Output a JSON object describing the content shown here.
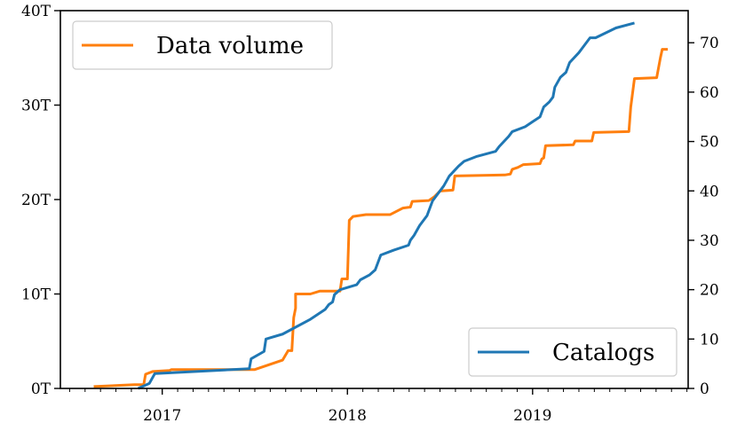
{
  "chart_data": {
    "type": "line",
    "x_axis": {
      "type": "date",
      "range": [
        2016.45,
        2019.84
      ],
      "ticks": [
        2017,
        2018,
        2019
      ],
      "tick_labels": [
        "2017",
        "2018",
        "2019"
      ]
    },
    "y_left": {
      "range": [
        0,
        40
      ],
      "ticks": [
        0,
        10,
        20,
        30,
        40
      ],
      "tick_labels": [
        "0T",
        "10T",
        "20T",
        "30T",
        "40T"
      ]
    },
    "y_right": {
      "range": [
        0,
        76.5
      ],
      "ticks": [
        0,
        10,
        20,
        30,
        40,
        50,
        60,
        70
      ],
      "tick_labels": [
        "0",
        "10",
        "20",
        "30",
        "40",
        "50",
        "60",
        "70"
      ]
    },
    "grid": false,
    "series": [
      {
        "name": "Data volume",
        "axis": "left",
        "color": "#ff7f0e",
        "legend_position": "top-left",
        "points": [
          [
            2016.63,
            0.2
          ],
          [
            2016.85,
            0.4
          ],
          [
            2016.9,
            0.4
          ],
          [
            2016.91,
            1.5
          ],
          [
            2016.95,
            1.8
          ],
          [
            2017.04,
            1.9
          ],
          [
            2017.05,
            2.0
          ],
          [
            2017.5,
            2.0
          ],
          [
            2017.65,
            3.0
          ],
          [
            2017.68,
            4.0
          ],
          [
            2017.7,
            4.0
          ],
          [
            2017.71,
            7.5
          ],
          [
            2017.72,
            8.5
          ],
          [
            2017.72,
            10.0
          ],
          [
            2017.8,
            10.0
          ],
          [
            2017.85,
            10.3
          ],
          [
            2017.96,
            10.3
          ],
          [
            2017.97,
            11.6
          ],
          [
            2018.0,
            11.6
          ],
          [
            2018.01,
            17.8
          ],
          [
            2018.03,
            18.2
          ],
          [
            2018.1,
            18.4
          ],
          [
            2018.23,
            18.4
          ],
          [
            2018.3,
            19.1
          ],
          [
            2018.34,
            19.2
          ],
          [
            2018.35,
            19.8
          ],
          [
            2018.44,
            19.9
          ],
          [
            2018.47,
            20.3
          ],
          [
            2018.5,
            20.9
          ],
          [
            2018.57,
            21.0
          ],
          [
            2018.58,
            22.5
          ],
          [
            2018.85,
            22.6
          ],
          [
            2018.88,
            22.7
          ],
          [
            2018.89,
            23.2
          ],
          [
            2018.92,
            23.4
          ],
          [
            2018.95,
            23.7
          ],
          [
            2019.04,
            23.8
          ],
          [
            2019.05,
            24.3
          ],
          [
            2019.06,
            24.4
          ],
          [
            2019.07,
            25.7
          ],
          [
            2019.22,
            25.8
          ],
          [
            2019.23,
            26.2
          ],
          [
            2019.32,
            26.2
          ],
          [
            2019.33,
            27.1
          ],
          [
            2019.52,
            27.2
          ],
          [
            2019.53,
            29.8
          ],
          [
            2019.55,
            32.8
          ],
          [
            2019.67,
            32.9
          ],
          [
            2019.69,
            35.0
          ],
          [
            2019.7,
            35.9
          ],
          [
            2019.73,
            35.9
          ]
        ]
      },
      {
        "name": "Catalogs",
        "axis": "right",
        "color": "#1f77b4",
        "legend_position": "bottom-right",
        "points": [
          [
            2016.87,
            0
          ],
          [
            2016.93,
            1
          ],
          [
            2016.96,
            3
          ],
          [
            2017.47,
            4
          ],
          [
            2017.48,
            6
          ],
          [
            2017.55,
            7.5
          ],
          [
            2017.56,
            10
          ],
          [
            2017.65,
            11
          ],
          [
            2017.8,
            14
          ],
          [
            2017.88,
            16
          ],
          [
            2017.9,
            17
          ],
          [
            2017.92,
            17.5
          ],
          [
            2017.93,
            19
          ],
          [
            2017.96,
            20
          ],
          [
            2018.05,
            21
          ],
          [
            2018.07,
            22
          ],
          [
            2018.12,
            23
          ],
          [
            2018.15,
            24
          ],
          [
            2018.18,
            27
          ],
          [
            2018.25,
            28
          ],
          [
            2018.33,
            29
          ],
          [
            2018.34,
            30
          ],
          [
            2018.36,
            31
          ],
          [
            2018.39,
            33
          ],
          [
            2018.43,
            35
          ],
          [
            2018.44,
            36
          ],
          [
            2018.46,
            38
          ],
          [
            2018.52,
            41
          ],
          [
            2018.55,
            43
          ],
          [
            2018.6,
            45
          ],
          [
            2018.63,
            46
          ],
          [
            2018.7,
            47
          ],
          [
            2018.8,
            48
          ],
          [
            2018.82,
            49
          ],
          [
            2018.87,
            51
          ],
          [
            2018.89,
            52
          ],
          [
            2018.96,
            53
          ],
          [
            2019.0,
            54
          ],
          [
            2019.04,
            55
          ],
          [
            2019.06,
            57
          ],
          [
            2019.09,
            58
          ],
          [
            2019.11,
            59
          ],
          [
            2019.12,
            61
          ],
          [
            2019.15,
            63
          ],
          [
            2019.18,
            64
          ],
          [
            2019.2,
            66
          ],
          [
            2019.25,
            68
          ],
          [
            2019.27,
            69
          ],
          [
            2019.31,
            71
          ],
          [
            2019.34,
            71
          ],
          [
            2019.45,
            73
          ],
          [
            2019.55,
            74
          ]
        ]
      }
    ]
  }
}
